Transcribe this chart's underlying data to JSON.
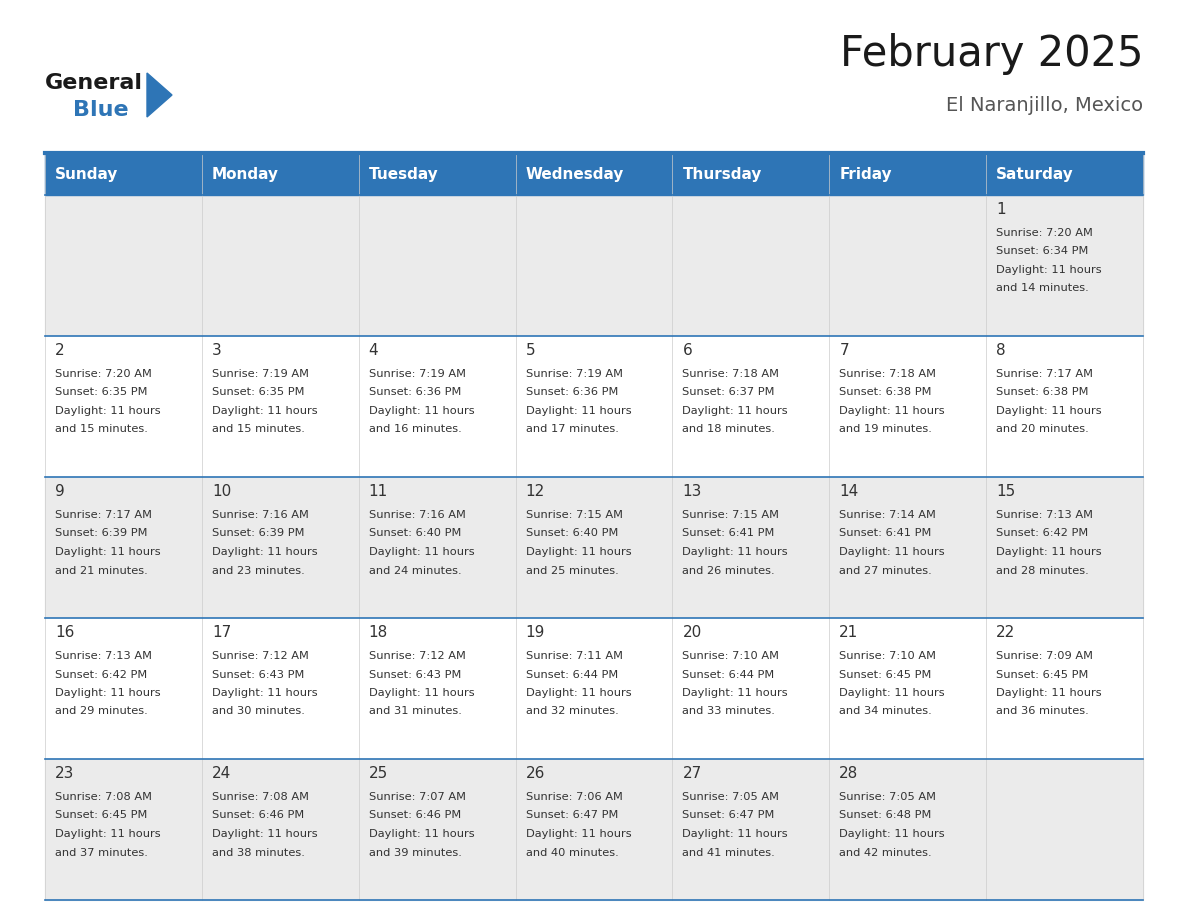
{
  "title": "February 2025",
  "subtitle": "El Naranjillo, Mexico",
  "header_color": "#2E75B6",
  "header_text_color": "#FFFFFF",
  "day_names": [
    "Sunday",
    "Monday",
    "Tuesday",
    "Wednesday",
    "Thursday",
    "Friday",
    "Saturday"
  ],
  "row0_bg": "#EBEBEB",
  "row_alt_bg": "#F5F5F5",
  "row_bg": "#FFFFFF",
  "line_color": "#2E75B6",
  "date_color": "#333333",
  "text_color": "#333333",
  "days": [
    {
      "day": 1,
      "col": 6,
      "row": 0,
      "sunrise": "7:20 AM",
      "sunset": "6:34 PM",
      "daylight": "11 hours and 14 minutes."
    },
    {
      "day": 2,
      "col": 0,
      "row": 1,
      "sunrise": "7:20 AM",
      "sunset": "6:35 PM",
      "daylight": "11 hours and 15 minutes."
    },
    {
      "day": 3,
      "col": 1,
      "row": 1,
      "sunrise": "7:19 AM",
      "sunset": "6:35 PM",
      "daylight": "11 hours and 15 minutes."
    },
    {
      "day": 4,
      "col": 2,
      "row": 1,
      "sunrise": "7:19 AM",
      "sunset": "6:36 PM",
      "daylight": "11 hours and 16 minutes."
    },
    {
      "day": 5,
      "col": 3,
      "row": 1,
      "sunrise": "7:19 AM",
      "sunset": "6:36 PM",
      "daylight": "11 hours and 17 minutes."
    },
    {
      "day": 6,
      "col": 4,
      "row": 1,
      "sunrise": "7:18 AM",
      "sunset": "6:37 PM",
      "daylight": "11 hours and 18 minutes."
    },
    {
      "day": 7,
      "col": 5,
      "row": 1,
      "sunrise": "7:18 AM",
      "sunset": "6:38 PM",
      "daylight": "11 hours and 19 minutes."
    },
    {
      "day": 8,
      "col": 6,
      "row": 1,
      "sunrise": "7:17 AM",
      "sunset": "6:38 PM",
      "daylight": "11 hours and 20 minutes."
    },
    {
      "day": 9,
      "col": 0,
      "row": 2,
      "sunrise": "7:17 AM",
      "sunset": "6:39 PM",
      "daylight": "11 hours and 21 minutes."
    },
    {
      "day": 10,
      "col": 1,
      "row": 2,
      "sunrise": "7:16 AM",
      "sunset": "6:39 PM",
      "daylight": "11 hours and 23 minutes."
    },
    {
      "day": 11,
      "col": 2,
      "row": 2,
      "sunrise": "7:16 AM",
      "sunset": "6:40 PM",
      "daylight": "11 hours and 24 minutes."
    },
    {
      "day": 12,
      "col": 3,
      "row": 2,
      "sunrise": "7:15 AM",
      "sunset": "6:40 PM",
      "daylight": "11 hours and 25 minutes."
    },
    {
      "day": 13,
      "col": 4,
      "row": 2,
      "sunrise": "7:15 AM",
      "sunset": "6:41 PM",
      "daylight": "11 hours and 26 minutes."
    },
    {
      "day": 14,
      "col": 5,
      "row": 2,
      "sunrise": "7:14 AM",
      "sunset": "6:41 PM",
      "daylight": "11 hours and 27 minutes."
    },
    {
      "day": 15,
      "col": 6,
      "row": 2,
      "sunrise": "7:13 AM",
      "sunset": "6:42 PM",
      "daylight": "11 hours and 28 minutes."
    },
    {
      "day": 16,
      "col": 0,
      "row": 3,
      "sunrise": "7:13 AM",
      "sunset": "6:42 PM",
      "daylight": "11 hours and 29 minutes."
    },
    {
      "day": 17,
      "col": 1,
      "row": 3,
      "sunrise": "7:12 AM",
      "sunset": "6:43 PM",
      "daylight": "11 hours and 30 minutes."
    },
    {
      "day": 18,
      "col": 2,
      "row": 3,
      "sunrise": "7:12 AM",
      "sunset": "6:43 PM",
      "daylight": "11 hours and 31 minutes."
    },
    {
      "day": 19,
      "col": 3,
      "row": 3,
      "sunrise": "7:11 AM",
      "sunset": "6:44 PM",
      "daylight": "11 hours and 32 minutes."
    },
    {
      "day": 20,
      "col": 4,
      "row": 3,
      "sunrise": "7:10 AM",
      "sunset": "6:44 PM",
      "daylight": "11 hours and 33 minutes."
    },
    {
      "day": 21,
      "col": 5,
      "row": 3,
      "sunrise": "7:10 AM",
      "sunset": "6:45 PM",
      "daylight": "11 hours and 34 minutes."
    },
    {
      "day": 22,
      "col": 6,
      "row": 3,
      "sunrise": "7:09 AM",
      "sunset": "6:45 PM",
      "daylight": "11 hours and 36 minutes."
    },
    {
      "day": 23,
      "col": 0,
      "row": 4,
      "sunrise": "7:08 AM",
      "sunset": "6:45 PM",
      "daylight": "11 hours and 37 minutes."
    },
    {
      "day": 24,
      "col": 1,
      "row": 4,
      "sunrise": "7:08 AM",
      "sunset": "6:46 PM",
      "daylight": "11 hours and 38 minutes."
    },
    {
      "day": 25,
      "col": 2,
      "row": 4,
      "sunrise": "7:07 AM",
      "sunset": "6:46 PM",
      "daylight": "11 hours and 39 minutes."
    },
    {
      "day": 26,
      "col": 3,
      "row": 4,
      "sunrise": "7:06 AM",
      "sunset": "6:47 PM",
      "daylight": "11 hours and 40 minutes."
    },
    {
      "day": 27,
      "col": 4,
      "row": 4,
      "sunrise": "7:05 AM",
      "sunset": "6:47 PM",
      "daylight": "11 hours and 41 minutes."
    },
    {
      "day": 28,
      "col": 5,
      "row": 4,
      "sunrise": "7:05 AM",
      "sunset": "6:48 PM",
      "daylight": "11 hours and 42 minutes."
    }
  ],
  "n_rows": 5,
  "n_cols": 7
}
